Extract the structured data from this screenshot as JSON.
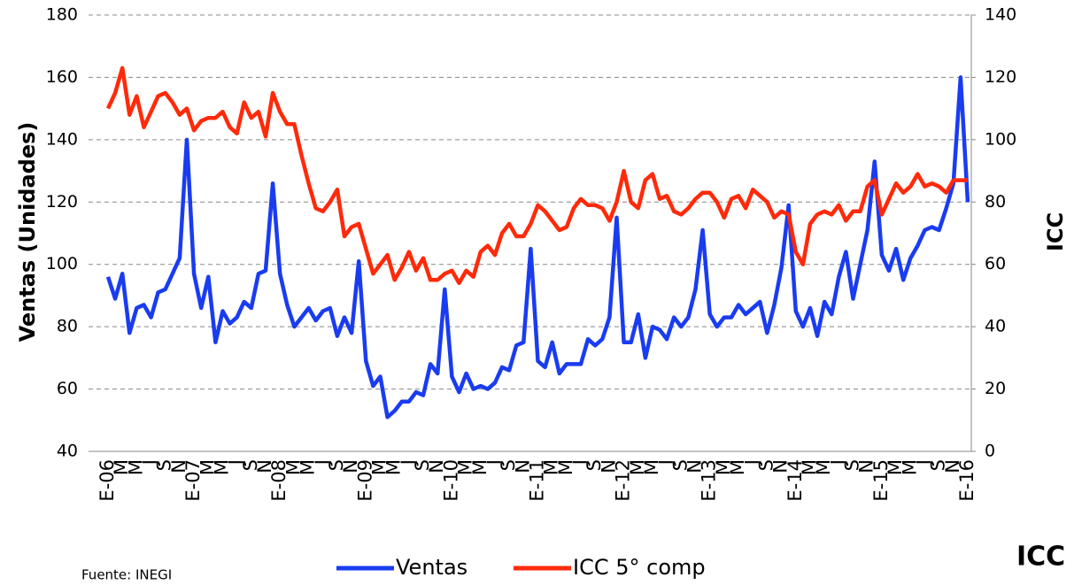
{
  "chart_data": {
    "type": "line",
    "y_label": "Ventas (Unidades)",
    "y2_label": "ICC",
    "source": "Fuente: INEGI",
    "corner_label": "ICC",
    "categories": [
      "E-06",
      null,
      "M",
      null,
      "M",
      null,
      "J",
      null,
      "S",
      null,
      "N",
      null,
      "E-07",
      null,
      "M",
      null,
      "M",
      null,
      "J",
      null,
      "S",
      null,
      "N",
      null,
      "E-08",
      null,
      "M",
      null,
      "M",
      null,
      "J",
      null,
      "S",
      null,
      "N",
      null,
      "E-09",
      null,
      "M",
      null,
      "M",
      null,
      "J",
      null,
      "S",
      null,
      "N",
      null,
      "E-10",
      null,
      "M",
      null,
      "M",
      null,
      "J",
      null,
      "S",
      null,
      "N",
      null,
      "E-11",
      null,
      "M",
      null,
      "M",
      null,
      "J",
      null,
      "S",
      null,
      "N",
      null,
      "E-12",
      null,
      "M",
      null,
      "M",
      null,
      "J",
      null,
      "S",
      null,
      "N",
      null,
      "E-13",
      null,
      "M",
      null,
      "M",
      null,
      "J",
      null,
      "S",
      null,
      "N",
      null,
      "E-14",
      null,
      "M",
      null,
      "M",
      null,
      "J",
      null,
      "S",
      null,
      "N",
      null,
      "E-15",
      null,
      "M",
      null,
      "M",
      null,
      "J",
      null,
      "S",
      null,
      "N",
      null,
      "E-16"
    ],
    "series": [
      {
        "name": "Ventas",
        "color": "#1a3cf0",
        "axis": "y",
        "values": [
          96,
          89,
          97,
          78,
          86,
          87,
          83,
          91,
          92,
          97,
          102,
          140,
          97,
          86,
          96,
          75,
          85,
          81,
          83,
          88,
          86,
          97,
          98,
          126,
          97,
          87,
          80,
          83,
          86,
          82,
          85,
          86,
          77,
          83,
          78,
          101,
          69,
          61,
          64,
          51,
          53,
          56,
          56,
          59,
          58,
          68,
          65,
          92,
          64,
          59,
          65,
          60,
          61,
          60,
          62,
          67,
          66,
          74,
          75,
          105,
          69,
          67,
          75,
          65,
          68,
          68,
          68,
          76,
          74,
          76,
          83,
          115,
          75,
          75,
          84,
          70,
          80,
          79,
          76,
          83,
          80,
          83,
          92,
          111,
          84,
          80,
          83,
          83,
          87,
          84,
          86,
          88,
          78,
          87,
          99,
          119,
          85,
          80,
          86,
          77,
          88,
          84,
          96,
          104,
          89,
          100,
          111,
          133,
          103,
          98,
          105,
          95,
          102,
          106,
          111,
          112,
          111,
          118,
          126,
          160,
          120
        ]
      },
      {
        "name": "ICC 5° comp",
        "color": "#ff2a0a",
        "axis": "y2",
        "values": [
          110,
          115,
          123,
          108,
          114,
          104,
          109,
          114,
          115,
          112,
          108,
          110,
          103,
          106,
          107,
          107,
          109,
          104,
          102,
          112,
          107,
          109,
          101,
          115,
          109,
          105,
          105,
          95,
          86,
          78,
          77,
          80,
          84,
          69,
          72,
          73,
          65,
          57,
          60,
          63,
          55,
          59,
          64,
          58,
          62,
          55,
          55,
          57,
          58,
          54,
          58,
          56,
          64,
          66,
          63,
          70,
          73,
          69,
          69,
          73,
          79,
          77,
          74,
          71,
          72,
          78,
          81,
          79,
          79,
          78,
          74,
          80,
          90,
          80,
          78,
          87,
          89,
          81,
          82,
          77,
          76,
          78,
          81,
          83,
          83,
          80,
          75,
          81,
          82,
          78,
          84,
          82,
          80,
          75,
          77,
          76,
          64,
          60,
          73,
          76,
          77,
          76,
          79,
          74,
          77,
          77,
          85,
          87,
          76,
          81,
          86,
          83,
          85,
          89,
          85,
          86,
          85,
          83,
          87,
          87,
          87
        ]
      }
    ],
    "ylim": [
      40,
      180
    ],
    "yticks": [
      40,
      60,
      80,
      100,
      120,
      140,
      160,
      180
    ],
    "y2lim": [
      0,
      140
    ],
    "y2ticks": [
      0,
      20,
      40,
      60,
      80,
      100,
      120,
      140
    ],
    "grid": true
  }
}
